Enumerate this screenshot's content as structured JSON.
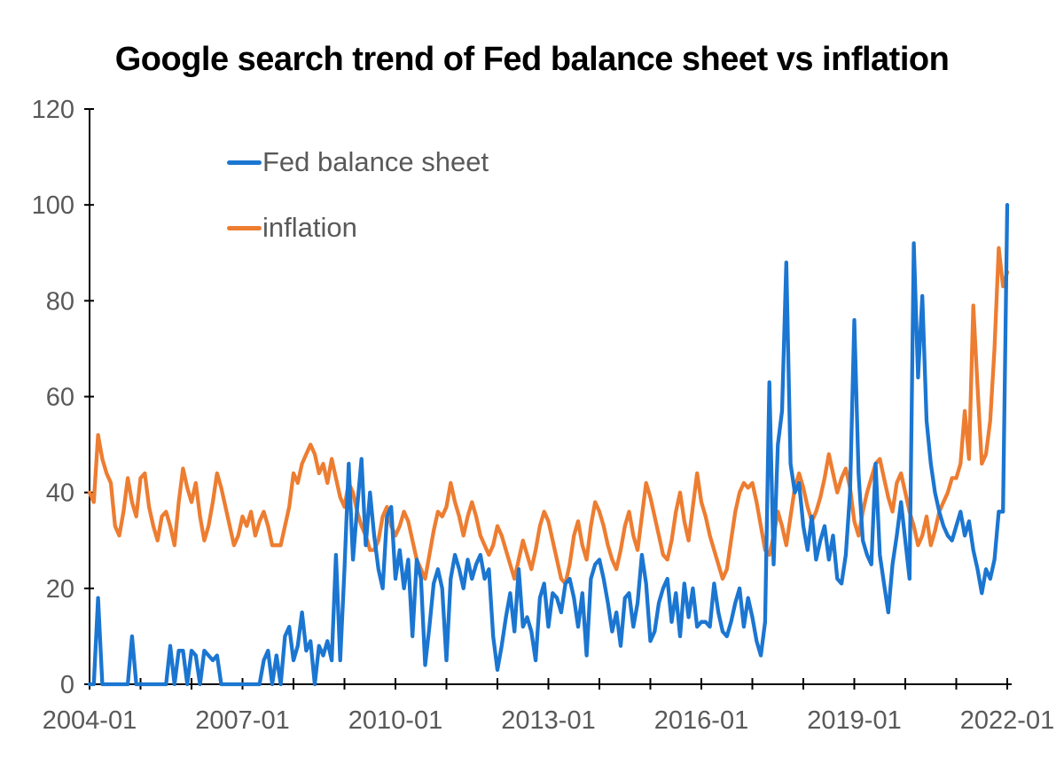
{
  "colors": {
    "background": "#FFFFFF",
    "axis": "#000000",
    "tick_label": "#595959",
    "title_text": "#000000",
    "legend_text": "#595959",
    "series_fed": "#1B76D1",
    "series_inflation": "#ED7D31"
  },
  "chart_data": {
    "type": "line",
    "title": "Google search trend of Fed balance sheet vs inflation",
    "xlabel": "",
    "ylabel": "",
    "x_start": "2004-01",
    "x_end": "2022-01",
    "x_frequency": "monthly",
    "ylim": [
      0,
      120
    ],
    "y_ticks": [
      0,
      20,
      40,
      60,
      80,
      100,
      120
    ],
    "x_tick_labels": [
      "2004-01",
      "2007-01",
      "2010-01",
      "2013-01",
      "2016-01",
      "2019-01",
      "2022-01"
    ],
    "x_tick_month_indices": [
      0,
      36,
      72,
      108,
      144,
      180,
      216
    ],
    "x_minor_tick_every_months": 12,
    "grid": false,
    "legend_position": "upper-left-inside",
    "series": [
      {
        "name": "Fed balance sheet",
        "color": "#1B76D1",
        "values": [
          0,
          0,
          18,
          0,
          0,
          0,
          0,
          0,
          0,
          0,
          10,
          0,
          0,
          0,
          0,
          0,
          0,
          0,
          0,
          8,
          0,
          7,
          7,
          0,
          7,
          6,
          0,
          7,
          6,
          5,
          6,
          0,
          0,
          0,
          0,
          0,
          0,
          0,
          0,
          0,
          0,
          5,
          7,
          0,
          6,
          0,
          10,
          12,
          5,
          8,
          15,
          7,
          9,
          0,
          8,
          6,
          9,
          5,
          27,
          5,
          24,
          46,
          26,
          37,
          47,
          29,
          40,
          31,
          24,
          20,
          35,
          37,
          22,
          28,
          20,
          26,
          10,
          26,
          22,
          4,
          12,
          21,
          24,
          20,
          5,
          22,
          27,
          24,
          20,
          26,
          22,
          25,
          27,
          22,
          24,
          10,
          3,
          8,
          14,
          19,
          11,
          24,
          12,
          14,
          11,
          5,
          18,
          21,
          12,
          19,
          18,
          15,
          21,
          22,
          18,
          12,
          19,
          6,
          22,
          25,
          26,
          22,
          17,
          11,
          15,
          8,
          18,
          19,
          12,
          17,
          27,
          21,
          9,
          11,
          17,
          20,
          22,
          13,
          19,
          10,
          21,
          14,
          20,
          12,
          13,
          13,
          12,
          21,
          15,
          11,
          10,
          13,
          17,
          20,
          12,
          18,
          14,
          9,
          6,
          13,
          63,
          25,
          50,
          57,
          88,
          46,
          40,
          42,
          33,
          28,
          35,
          26,
          30,
          33,
          26,
          31,
          22,
          21,
          27,
          40,
          76,
          44,
          30,
          27,
          25,
          46,
          27,
          21,
          15,
          25,
          31,
          38,
          30,
          22,
          92,
          64,
          81,
          55,
          46,
          40,
          36,
          33,
          31,
          30,
          33,
          36,
          31,
          34,
          28,
          24,
          19,
          24,
          22,
          26,
          36,
          36,
          100
        ]
      },
      {
        "name": "inflation",
        "color": "#ED7D31",
        "values": [
          40,
          38,
          52,
          47,
          44,
          42,
          33,
          31,
          36,
          43,
          38,
          35,
          43,
          44,
          37,
          33,
          30,
          35,
          36,
          33,
          29,
          38,
          45,
          41,
          38,
          42,
          35,
          30,
          33,
          38,
          44,
          41,
          37,
          33,
          29,
          31,
          35,
          33,
          36,
          31,
          34,
          36,
          33,
          29,
          29,
          29,
          33,
          37,
          44,
          42,
          46,
          48,
          50,
          48,
          44,
          46,
          42,
          47,
          43,
          39,
          37,
          42,
          40,
          36,
          33,
          31,
          28,
          28,
          30,
          35,
          37,
          33,
          31,
          33,
          36,
          34,
          30,
          26,
          24,
          22,
          27,
          32,
          36,
          35,
          37,
          42,
          38,
          35,
          31,
          35,
          38,
          35,
          31,
          29,
          27,
          29,
          33,
          31,
          28,
          25,
          22,
          26,
          30,
          27,
          24,
          28,
          33,
          36,
          34,
          30,
          26,
          22,
          21,
          25,
          31,
          34,
          29,
          26,
          33,
          38,
          36,
          33,
          29,
          26,
          24,
          28,
          33,
          36,
          31,
          28,
          35,
          42,
          39,
          35,
          31,
          27,
          26,
          30,
          36,
          40,
          34,
          30,
          37,
          44,
          38,
          35,
          31,
          28,
          25,
          22,
          24,
          30,
          36,
          40,
          42,
          41,
          42,
          38,
          33,
          28,
          27,
          31,
          36,
          33,
          29,
          35,
          41,
          44,
          41,
          37,
          34,
          36,
          39,
          43,
          48,
          44,
          40,
          43,
          45,
          41,
          34,
          31,
          36,
          40,
          43,
          46,
          47,
          43,
          39,
          36,
          42,
          44,
          40,
          36,
          33,
          29,
          31,
          35,
          29,
          32,
          36,
          38,
          40,
          43,
          43,
          46,
          57,
          47,
          79,
          62,
          46,
          48,
          55,
          70,
          91,
          83,
          86
        ]
      }
    ]
  }
}
